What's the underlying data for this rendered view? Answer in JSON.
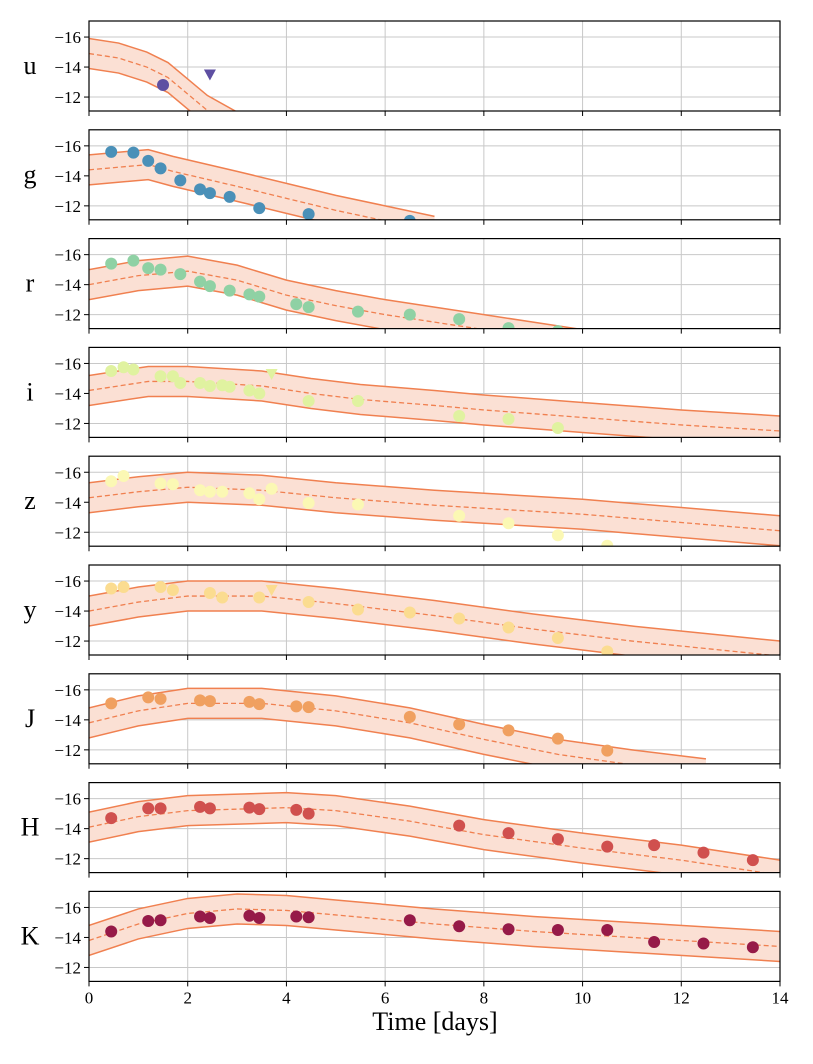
{
  "chart_data": {
    "type": "scatter",
    "xlabel": "Time [days]",
    "xlim": [
      0,
      14
    ],
    "xticks": [
      0,
      2,
      4,
      6,
      8,
      10,
      12,
      14
    ],
    "ylim": [
      -11.07,
      -17.07
    ],
    "yticks": [
      -16,
      -14,
      -12
    ],
    "grid": true,
    "model_band_halfwidth_mag": 1.0,
    "model_color": "#f08050",
    "band_fill": "#fbe0d4",
    "panels": [
      {
        "band": "u",
        "color": "#5e4fa2",
        "points": [
          [
            1.5,
            -12.8
          ]
        ],
        "upper_limits": [
          [
            2.45,
            -13.5
          ]
        ],
        "model": [
          [
            0,
            -14.9
          ],
          [
            0.6,
            -14.6
          ],
          [
            1.17,
            -14.0
          ],
          [
            1.6,
            -13.3
          ],
          [
            2.4,
            -11.1
          ],
          [
            3,
            -10
          ]
        ]
      },
      {
        "band": "g",
        "color": "#4a90b8",
        "points": [
          [
            0.45,
            -15.6
          ],
          [
            0.9,
            -15.55
          ],
          [
            1.2,
            -15.0
          ],
          [
            1.45,
            -14.5
          ],
          [
            1.85,
            -13.7
          ],
          [
            2.25,
            -13.1
          ],
          [
            2.45,
            -12.85
          ],
          [
            2.85,
            -12.6
          ],
          [
            3.45,
            -11.85
          ],
          [
            4.45,
            -11.45
          ],
          [
            6.5,
            -11.0
          ]
        ],
        "upper_limits": [],
        "model": [
          [
            0,
            -14.4
          ],
          [
            1.2,
            -14.75
          ],
          [
            1.7,
            -14.3
          ],
          [
            3,
            -13.3
          ],
          [
            4,
            -12.5
          ],
          [
            5,
            -11.7
          ],
          [
            6,
            -11.0
          ],
          [
            7,
            -10.3
          ]
        ]
      },
      {
        "band": "r",
        "color": "#8fd1a4",
        "points": [
          [
            0.45,
            -15.4
          ],
          [
            0.9,
            -15.6
          ],
          [
            1.2,
            -15.1
          ],
          [
            1.45,
            -15.0
          ],
          [
            1.85,
            -14.7
          ],
          [
            2.25,
            -14.2
          ],
          [
            2.45,
            -13.9
          ],
          [
            2.85,
            -13.6
          ],
          [
            3.25,
            -13.35
          ],
          [
            3.45,
            -13.2
          ],
          [
            4.2,
            -12.7
          ],
          [
            4.45,
            -12.5
          ],
          [
            5.45,
            -12.2
          ],
          [
            6.5,
            -12.0
          ],
          [
            7.5,
            -11.7
          ],
          [
            8.5,
            -11.1
          ],
          [
            9.5,
            -10.9
          ]
        ],
        "upper_limits": [],
        "model": [
          [
            0,
            -14.0
          ],
          [
            1,
            -14.6
          ],
          [
            2,
            -14.9
          ],
          [
            3,
            -14.3
          ],
          [
            4,
            -13.3
          ],
          [
            5,
            -12.6
          ],
          [
            6,
            -12.0
          ],
          [
            7,
            -11.5
          ],
          [
            8,
            -11.0
          ],
          [
            9,
            -10.5
          ],
          [
            10,
            -10.0
          ]
        ]
      },
      {
        "band": "i",
        "color": "#e0f2a0",
        "points": [
          [
            0.45,
            -15.5
          ],
          [
            0.7,
            -15.75
          ],
          [
            0.9,
            -15.6
          ],
          [
            1.45,
            -15.15
          ],
          [
            1.7,
            -15.15
          ],
          [
            1.85,
            -14.7
          ],
          [
            2.25,
            -14.7
          ],
          [
            2.45,
            -14.5
          ],
          [
            2.7,
            -14.55
          ],
          [
            2.85,
            -14.45
          ],
          [
            3.25,
            -14.2
          ],
          [
            3.45,
            -14.0
          ],
          [
            4.45,
            -13.5
          ],
          [
            5.45,
            -13.5
          ],
          [
            7.5,
            -12.5
          ],
          [
            8.5,
            -12.3
          ],
          [
            9.5,
            -11.7
          ]
        ],
        "upper_limits": [
          [
            3.7,
            -15.3
          ]
        ],
        "model": [
          [
            0,
            -14.2
          ],
          [
            1.2,
            -14.8
          ],
          [
            2,
            -14.8
          ],
          [
            3.5,
            -14.5
          ],
          [
            4.5,
            -14.0
          ],
          [
            5.5,
            -13.6
          ],
          [
            7,
            -13.2
          ],
          [
            8,
            -12.9
          ],
          [
            10,
            -12.4
          ],
          [
            12,
            -11.9
          ],
          [
            14,
            -11.5
          ]
        ]
      },
      {
        "band": "z",
        "color": "#fbf8b4",
        "points": [
          [
            0.45,
            -15.4
          ],
          [
            0.7,
            -15.75
          ],
          [
            1.45,
            -15.25
          ],
          [
            1.7,
            -15.2
          ],
          [
            2.25,
            -14.8
          ],
          [
            2.45,
            -14.7
          ],
          [
            2.7,
            -14.7
          ],
          [
            3.25,
            -14.6
          ],
          [
            3.45,
            -14.2
          ],
          [
            3.7,
            -14.9
          ],
          [
            4.45,
            -13.95
          ],
          [
            5.45,
            -13.85
          ],
          [
            7.5,
            -13.1
          ],
          [
            8.5,
            -12.6
          ],
          [
            9.5,
            -11.8
          ],
          [
            10.5,
            -11.1
          ]
        ],
        "upper_limits": [],
        "model": [
          [
            0,
            -14.3
          ],
          [
            1,
            -14.7
          ],
          [
            2,
            -15.0
          ],
          [
            3.5,
            -14.8
          ],
          [
            5,
            -14.3
          ],
          [
            7,
            -13.8
          ],
          [
            10,
            -13.2
          ],
          [
            14,
            -12.1
          ]
        ]
      },
      {
        "band": "y",
        "color": "#fbdc90",
        "points": [
          [
            0.45,
            -15.5
          ],
          [
            0.7,
            -15.6
          ],
          [
            1.45,
            -15.6
          ],
          [
            1.7,
            -15.4
          ],
          [
            2.45,
            -15.2
          ],
          [
            2.7,
            -14.9
          ],
          [
            3.45,
            -14.9
          ],
          [
            4.45,
            -14.6
          ],
          [
            5.45,
            -14.1
          ],
          [
            6.5,
            -13.9
          ],
          [
            7.5,
            -13.5
          ],
          [
            8.5,
            -12.9
          ],
          [
            9.5,
            -12.2
          ],
          [
            10.5,
            -11.3
          ]
        ],
        "upper_limits": [
          [
            3.7,
            -15.4
          ]
        ],
        "model": [
          [
            0,
            -14.0
          ],
          [
            1,
            -14.6
          ],
          [
            2,
            -15.0
          ],
          [
            3.5,
            -15.0
          ],
          [
            5,
            -14.5
          ],
          [
            7,
            -13.7
          ],
          [
            9,
            -12.8
          ],
          [
            11,
            -12.0
          ],
          [
            14,
            -11.0
          ]
        ]
      },
      {
        "band": "J",
        "color": "#f0a060",
        "points": [
          [
            0.45,
            -15.1
          ],
          [
            1.2,
            -15.5
          ],
          [
            1.45,
            -15.4
          ],
          [
            2.25,
            -15.3
          ],
          [
            2.45,
            -15.25
          ],
          [
            3.25,
            -15.2
          ],
          [
            3.45,
            -15.05
          ],
          [
            4.2,
            -14.9
          ],
          [
            4.45,
            -14.85
          ],
          [
            6.5,
            -14.2
          ],
          [
            7.5,
            -13.7
          ],
          [
            8.5,
            -13.3
          ],
          [
            9.5,
            -12.75
          ],
          [
            10.5,
            -11.95
          ]
        ],
        "upper_limits": [],
        "model": [
          [
            0,
            -13.8
          ],
          [
            1,
            -14.6
          ],
          [
            2,
            -15.1
          ],
          [
            3.5,
            -15.1
          ],
          [
            5,
            -14.6
          ],
          [
            6.5,
            -13.8
          ],
          [
            8,
            -12.7
          ],
          [
            9.5,
            -11.7
          ],
          [
            11,
            -11.0
          ],
          [
            12.5,
            -10.4
          ]
        ]
      },
      {
        "band": "H",
        "color": "#d0504e",
        "points": [
          [
            0.45,
            -14.7
          ],
          [
            1.2,
            -15.35
          ],
          [
            1.45,
            -15.35
          ],
          [
            2.25,
            -15.45
          ],
          [
            2.45,
            -15.35
          ],
          [
            3.25,
            -15.4
          ],
          [
            3.45,
            -15.3
          ],
          [
            4.2,
            -15.25
          ],
          [
            4.45,
            -15.0
          ],
          [
            7.5,
            -14.2
          ],
          [
            8.5,
            -13.7
          ],
          [
            9.5,
            -13.3
          ],
          [
            10.5,
            -12.8
          ],
          [
            11.45,
            -12.9
          ],
          [
            12.45,
            -12.4
          ],
          [
            13.45,
            -11.9
          ]
        ],
        "upper_limits": [],
        "model": [
          [
            0,
            -14.1
          ],
          [
            1,
            -14.8
          ],
          [
            2,
            -15.2
          ],
          [
            4,
            -15.4
          ],
          [
            5,
            -15.2
          ],
          [
            6.5,
            -14.5
          ],
          [
            8,
            -13.6
          ],
          [
            10,
            -12.7
          ],
          [
            12,
            -11.9
          ],
          [
            14,
            -10.9
          ]
        ]
      },
      {
        "band": "K",
        "color": "#961a48",
        "points": [
          [
            0.45,
            -14.4
          ],
          [
            1.2,
            -15.1
          ],
          [
            1.45,
            -15.15
          ],
          [
            2.25,
            -15.4
          ],
          [
            2.45,
            -15.3
          ],
          [
            3.25,
            -15.45
          ],
          [
            3.45,
            -15.3
          ],
          [
            4.2,
            -15.4
          ],
          [
            4.45,
            -15.35
          ],
          [
            6.5,
            -15.15
          ],
          [
            7.5,
            -14.75
          ],
          [
            8.5,
            -14.55
          ],
          [
            9.5,
            -14.5
          ],
          [
            10.5,
            -14.5
          ],
          [
            11.45,
            -13.7
          ],
          [
            12.45,
            -13.6
          ],
          [
            13.45,
            -13.35
          ]
        ],
        "upper_limits": [],
        "model": [
          [
            0,
            -13.8
          ],
          [
            1,
            -14.9
          ],
          [
            2,
            -15.6
          ],
          [
            3,
            -15.9
          ],
          [
            4,
            -15.8
          ],
          [
            5,
            -15.5
          ],
          [
            7,
            -14.9
          ],
          [
            9,
            -14.4
          ],
          [
            11,
            -14.0
          ],
          [
            14,
            -13.4
          ]
        ]
      }
    ]
  }
}
